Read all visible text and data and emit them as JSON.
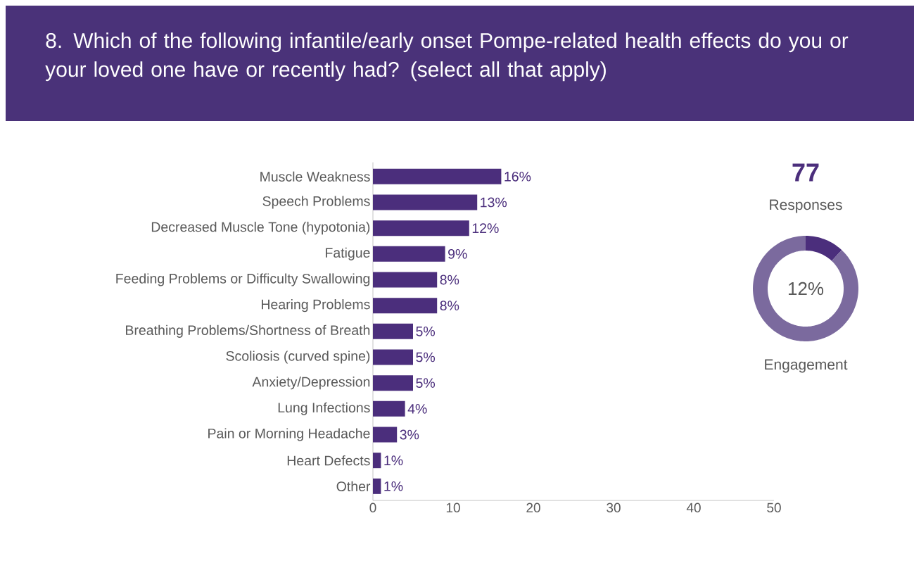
{
  "chart_data": [
    {
      "type": "bar",
      "orientation": "horizontal",
      "title": "8. Which of the following infantile/early onset Pompe-related health effects do you or your loved one have or recently had? (select all that apply)",
      "categories": [
        "Muscle Weakness",
        "Speech Problems",
        "Decreased Muscle Tone (hypotonia)",
        "Fatigue",
        "Feeding Problems or Difficulty Swallowing",
        "Hearing Problems",
        "Breathing Problems/Shortness of Breath",
        "Scoliosis (curved spine)",
        "Anxiety/Depression",
        "Lung Infections",
        "Pain or Morning Headache",
        "Heart Defects",
        "Other"
      ],
      "values": [
        16,
        13,
        12,
        9,
        8,
        8,
        5,
        5,
        5,
        4,
        3,
        1,
        1
      ],
      "value_labels": [
        "16%",
        "13%",
        "12%",
        "9%",
        "8%",
        "8%",
        "5%",
        "5%",
        "5%",
        "4%",
        "3%",
        "1%",
        "1%"
      ],
      "color": "#4b2e7c",
      "xlim": [
        0,
        50
      ],
      "xticks": [
        0,
        10,
        20,
        30,
        40,
        50
      ]
    },
    {
      "type": "donut",
      "categories": [
        null,
        null
      ],
      "values": [
        12,
        88
      ],
      "colors": [
        "#4b2e7c",
        "#7b6a9e"
      ],
      "annotations": [
        "77",
        "Responses",
        "12%",
        "Engagement"
      ]
    }
  ]
}
